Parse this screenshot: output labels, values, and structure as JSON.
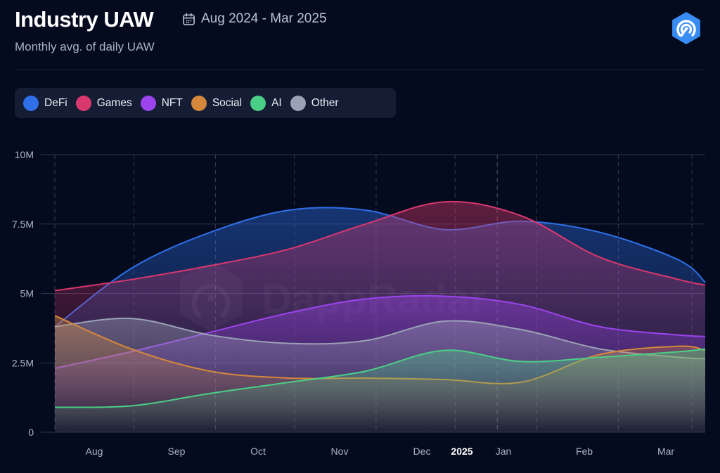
{
  "header": {
    "title": "Industry UAW",
    "date_range": "Aug 2024 - Mar 2025",
    "subtitle": "Monthly avg. of daily UAW",
    "calendar_icon": "calendar-icon",
    "brand_icon": "dappradar-logo-icon"
  },
  "watermark": "DappRadar",
  "legend": [
    {
      "label": "DeFi",
      "color": "#2f6fe8"
    },
    {
      "label": "Games",
      "color": "#d9386e"
    },
    {
      "label": "NFT",
      "color": "#9b44ec"
    },
    {
      "label": "Social",
      "color": "#d5883b"
    },
    {
      "label": "AI",
      "color": "#4bcf86"
    },
    {
      "label": "Other",
      "color": "#9aa2b6"
    }
  ],
  "chart_data": {
    "type": "area",
    "title": "Industry UAW",
    "subtitle": "Monthly avg. of daily UAW",
    "x_tick_labels": [
      "Aug",
      "Sep",
      "Oct",
      "Nov",
      "Dec",
      "2025",
      "Jan",
      "Feb",
      "Mar"
    ],
    "x_tick_bold": [
      "2025"
    ],
    "x": [
      "2024-07-17",
      "2024-08-15",
      "2024-09-14",
      "2024-10-14",
      "2024-11-12",
      "2024-12-12",
      "2025-01-10",
      "2025-02-09",
      "2025-03-11",
      "2025-03-21"
    ],
    "y_ticks": [
      0,
      2500000,
      5000000,
      7500000,
      10000000
    ],
    "y_tick_labels": [
      "0",
      "2.5M",
      "5M",
      "7.5M",
      "10M"
    ],
    "ylim": [
      0,
      10000000
    ],
    "grid": true,
    "legend_position": "top-left",
    "series": [
      {
        "name": "DeFi",
        "color": "#2f6fe8",
        "values": [
          3800000,
          5900000,
          7200000,
          8000000,
          8000000,
          7300000,
          7600000,
          7200000,
          6200000,
          5400000
        ]
      },
      {
        "name": "Games",
        "color": "#d9386e",
        "values": [
          5100000,
          5500000,
          6000000,
          6600000,
          7500000,
          8300000,
          7800000,
          6300000,
          5500000,
          5300000
        ]
      },
      {
        "name": "NFT",
        "color": "#9b44ec",
        "values": [
          2300000,
          2900000,
          3600000,
          4300000,
          4800000,
          4900000,
          4600000,
          3800000,
          3500000,
          3450000
        ]
      },
      {
        "name": "Social",
        "color": "#d5883b",
        "values": [
          4200000,
          3000000,
          2200000,
          1950000,
          1950000,
          1900000,
          1800000,
          2800000,
          3100000,
          2950000
        ]
      },
      {
        "name": "AI",
        "color": "#4bcf86",
        "values": [
          900000,
          950000,
          1400000,
          1800000,
          2200000,
          2950000,
          2550000,
          2700000,
          2900000,
          3000000
        ]
      },
      {
        "name": "Other",
        "color": "#9aa2b6",
        "values": [
          3800000,
          4100000,
          3500000,
          3200000,
          3300000,
          4000000,
          3700000,
          3000000,
          2700000,
          2650000
        ]
      }
    ]
  }
}
